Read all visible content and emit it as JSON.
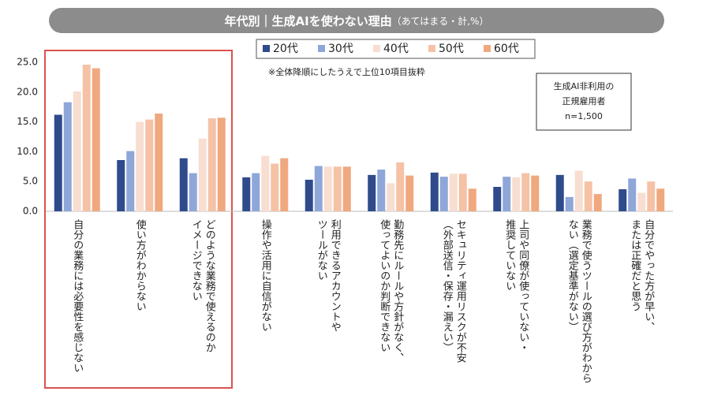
{
  "chart_data": {
    "type": "bar",
    "title": "年代別｜生成AIを使わない理由",
    "subtitle": "（あてはまる・計,%）",
    "note": "※全体降順にしたうえで上位10項目抜粋",
    "sample_box": [
      "生成AI非利用の",
      "正規雇用者",
      "n=1,500"
    ],
    "categories": [
      [
        "自分の業務には必要性を感じない"
      ],
      [
        "使い方がわからない"
      ],
      [
        "どのような業務で使えるのか",
        "イメージできない"
      ],
      [
        "操作や活用に自信がない"
      ],
      [
        "利用できるアカウントや",
        "ツールがない"
      ],
      [
        "勤務先にルールや方針がなく、",
        "使ってよいのか判断できない"
      ],
      [
        "セキュリティ運用リスクが不安",
        "（外部送信・保存・漏えい）"
      ],
      [
        "上司や同僚が使っていない・",
        "推奨していない"
      ],
      [
        "業務で使うツールの選び方がわから",
        "ない（選定基準がない）"
      ],
      [
        "自分でやった方が早い、",
        "または正確だと思う"
      ]
    ],
    "series": [
      {
        "name": "20代",
        "color": "#2f4b8c",
        "values": [
          16.2,
          8.6,
          8.9,
          5.7,
          5.3,
          6.1,
          6.5,
          4.1,
          6.1,
          3.7
        ]
      },
      {
        "name": "30代",
        "color": "#8ea7d8",
        "values": [
          18.3,
          10.1,
          6.4,
          6.4,
          7.6,
          7.0,
          5.8,
          5.8,
          2.4,
          5.5
        ]
      },
      {
        "name": "40代",
        "color": "#f8ddd1",
        "values": [
          20.1,
          15.0,
          12.2,
          9.3,
          7.5,
          4.7,
          6.3,
          5.7,
          6.8,
          3.1
        ]
      },
      {
        "name": "50代",
        "color": "#f5c2a6",
        "values": [
          24.6,
          15.4,
          15.6,
          8.0,
          7.5,
          8.2,
          6.3,
          6.4,
          5.0,
          5.0
        ]
      },
      {
        "name": "60代",
        "color": "#f0a87f",
        "values": [
          24.0,
          16.4,
          15.7,
          8.9,
          7.5,
          6.0,
          3.8,
          6.0,
          2.9,
          3.8
        ]
      }
    ],
    "ylim": [
      0,
      25
    ],
    "yticks": [
      {
        "value": 0,
        "label": "0.0"
      },
      {
        "value": 5,
        "label": "5.0"
      },
      {
        "value": 10,
        "label": "10.0"
      },
      {
        "value": 15,
        "label": "15.0"
      },
      {
        "value": 20,
        "label": "20.0"
      },
      {
        "value": 25,
        "label": "25.0"
      }
    ],
    "grid": false
  }
}
